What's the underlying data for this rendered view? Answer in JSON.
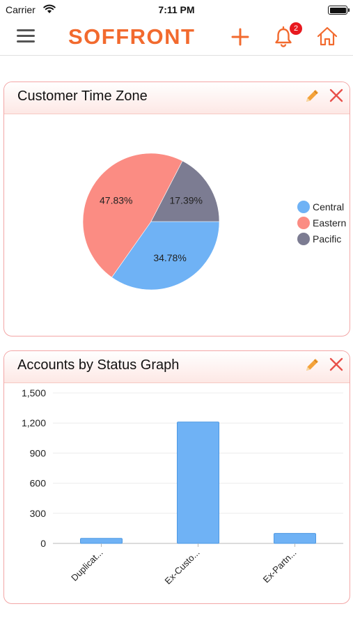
{
  "status_bar": {
    "carrier": "Carrier",
    "time": "7:11 PM"
  },
  "nav": {
    "logo": "SOFFRONT",
    "notification_count": "2"
  },
  "colors": {
    "accent": "#f26a2e",
    "central": "#6fb2f5",
    "eastern": "#fb8c83",
    "pacific": "#7c7c92"
  },
  "icons": [
    "menu-icon",
    "plus-icon",
    "bell-icon",
    "home-icon",
    "pencil-icon",
    "close-icon",
    "wifi-icon",
    "battery-icon"
  ],
  "cards": [
    {
      "title": "Customer Time Zone",
      "chart_data": {
        "type": "pie",
        "slices": [
          {
            "label": "Central",
            "value": 34.78,
            "display": "34.78%",
            "color": "#6fb2f5"
          },
          {
            "label": "Eastern",
            "value": 47.83,
            "display": "47.83%",
            "color": "#fb8c83"
          },
          {
            "label": "Pacific",
            "value": 17.39,
            "display": "17.39%",
            "color": "#7c7c92"
          }
        ],
        "legend": [
          "Central",
          "Eastern",
          "Pacific"
        ],
        "legend_position": "right"
      }
    },
    {
      "title": "Accounts by Status Graph",
      "chart_data": {
        "type": "bar",
        "categories": [
          "Duplicat...",
          "Ex-Custo...",
          "Ex-Partn..."
        ],
        "values": [
          50,
          1210,
          100
        ],
        "ylim": [
          0,
          1500
        ],
        "yticks": [
          "0",
          "300",
          "600",
          "900",
          "1,200",
          "1,500"
        ],
        "ytick_values": [
          0,
          300,
          600,
          900,
          1200,
          1500
        ],
        "grid": true,
        "bar_color": "#6fb2f5"
      }
    }
  ]
}
